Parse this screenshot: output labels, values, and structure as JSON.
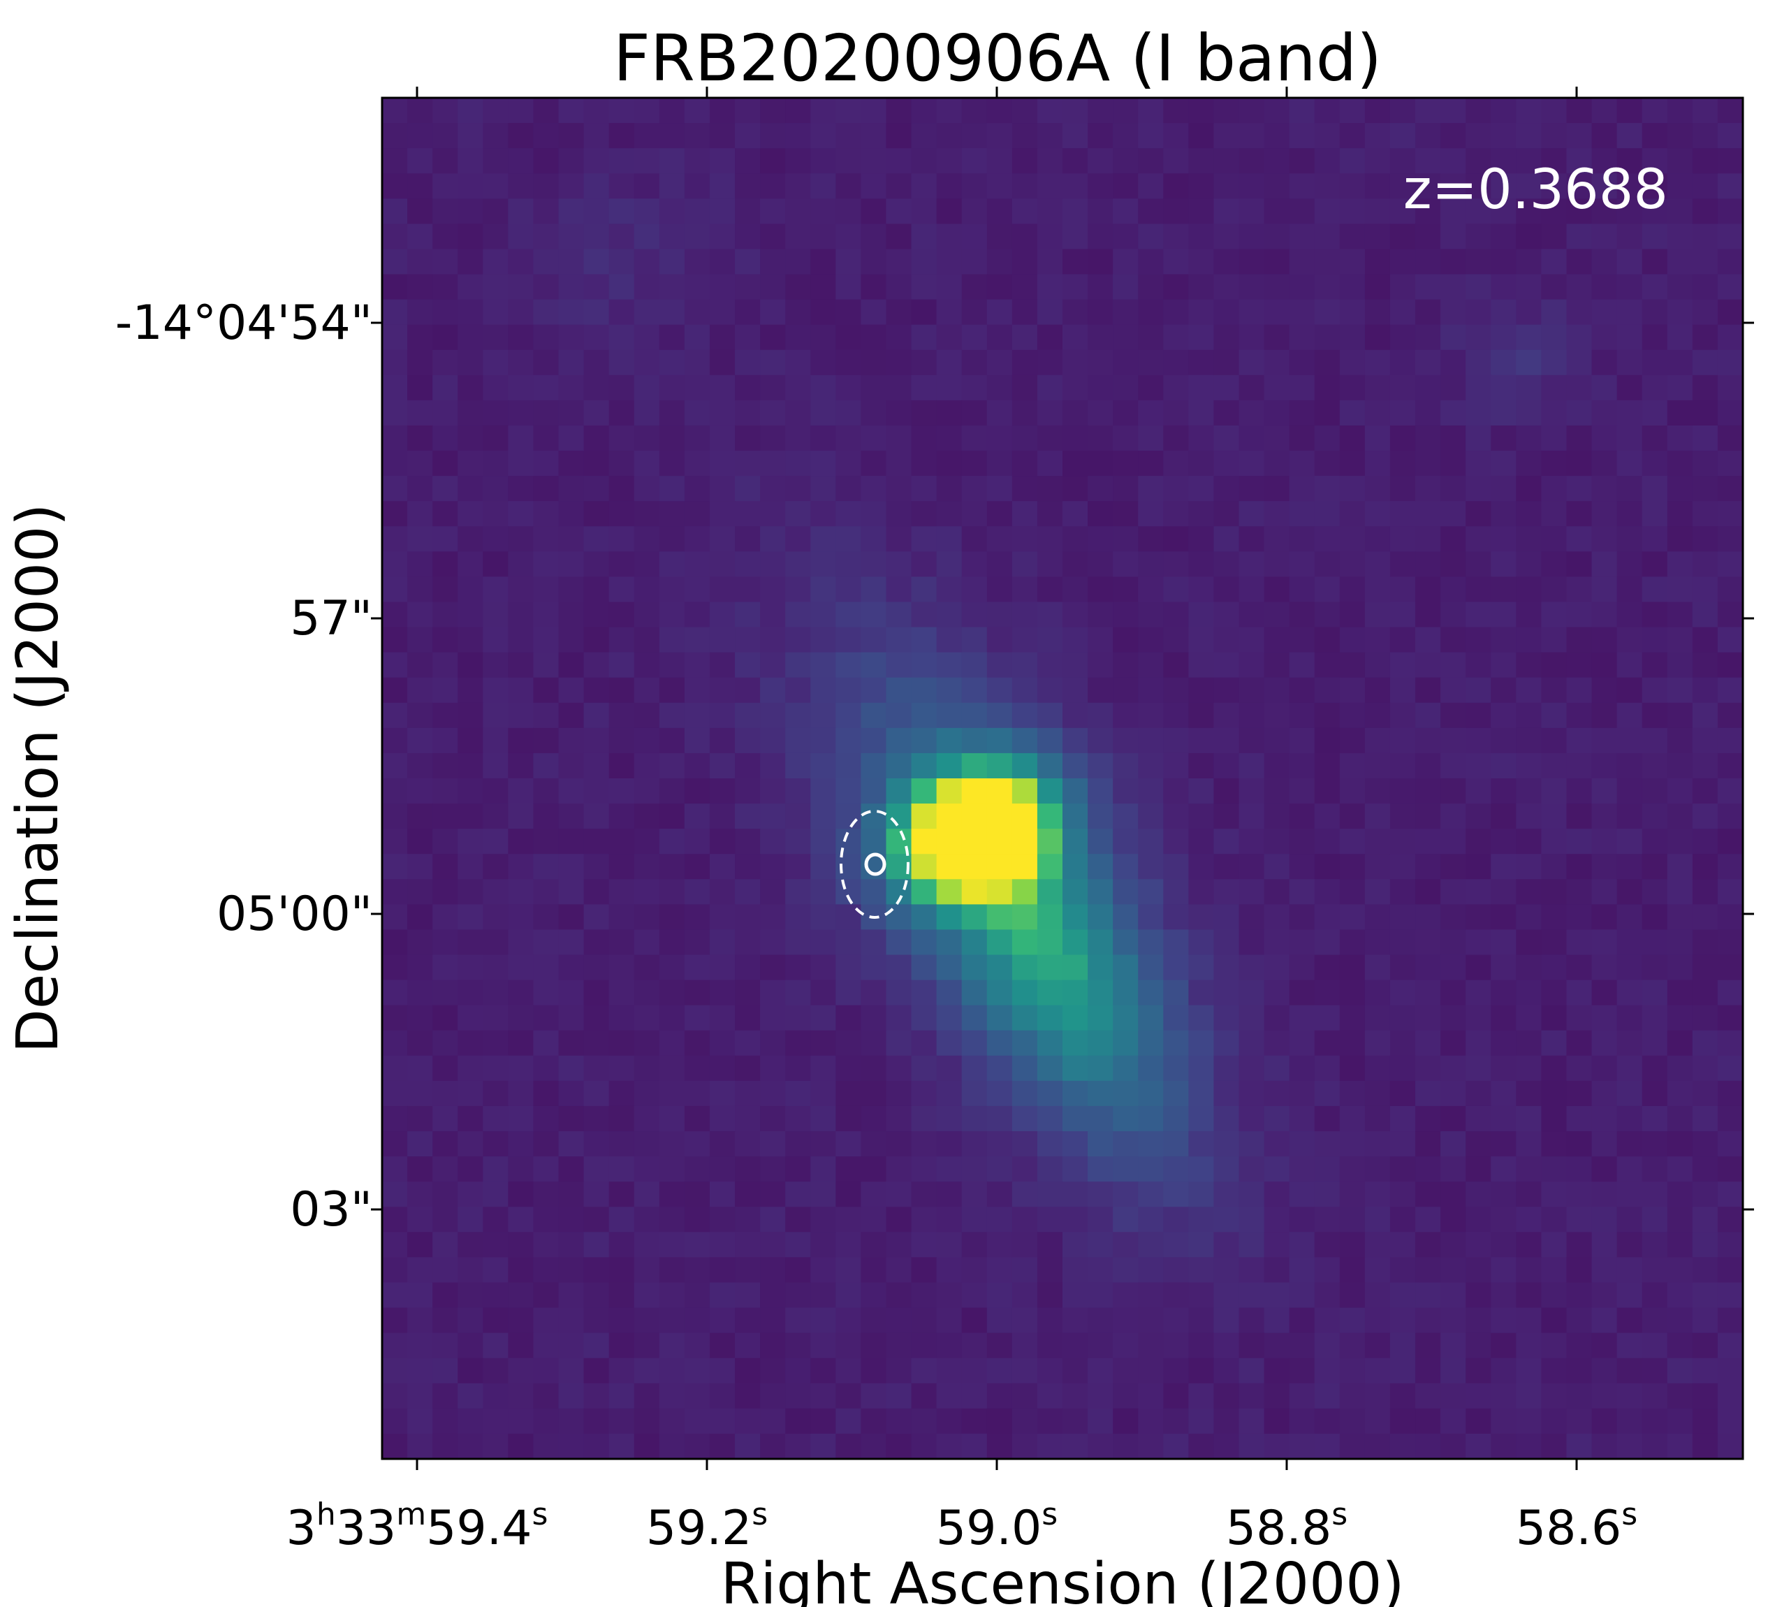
{
  "title": "FRB20200906A (I band)",
  "x_axis": {
    "label": "Right Ascension (J2000)",
    "ticks": [
      {
        "pre": "3",
        "h": "h",
        "mid": "33",
        "m": "m",
        "val": "59.4",
        "s": "s"
      },
      {
        "val": "59.2",
        "s": "s"
      },
      {
        "val": "59.0",
        "s": "s"
      },
      {
        "val": "58.8",
        "s": "s"
      },
      {
        "val": "58.6",
        "s": "s"
      }
    ]
  },
  "y_axis": {
    "label": "Declination (J2000)",
    "ticks": [
      "-14°04'54\"",
      "57\"",
      "05'00\"",
      "03\""
    ]
  },
  "annotation": {
    "text": "z=0.3688",
    "color": "#ffffff"
  },
  "colormap": "viridis",
  "colors": {
    "background_pixel": "#45256f",
    "peak_pixel": "#f4e61f",
    "marker": "#ffffff"
  }
}
